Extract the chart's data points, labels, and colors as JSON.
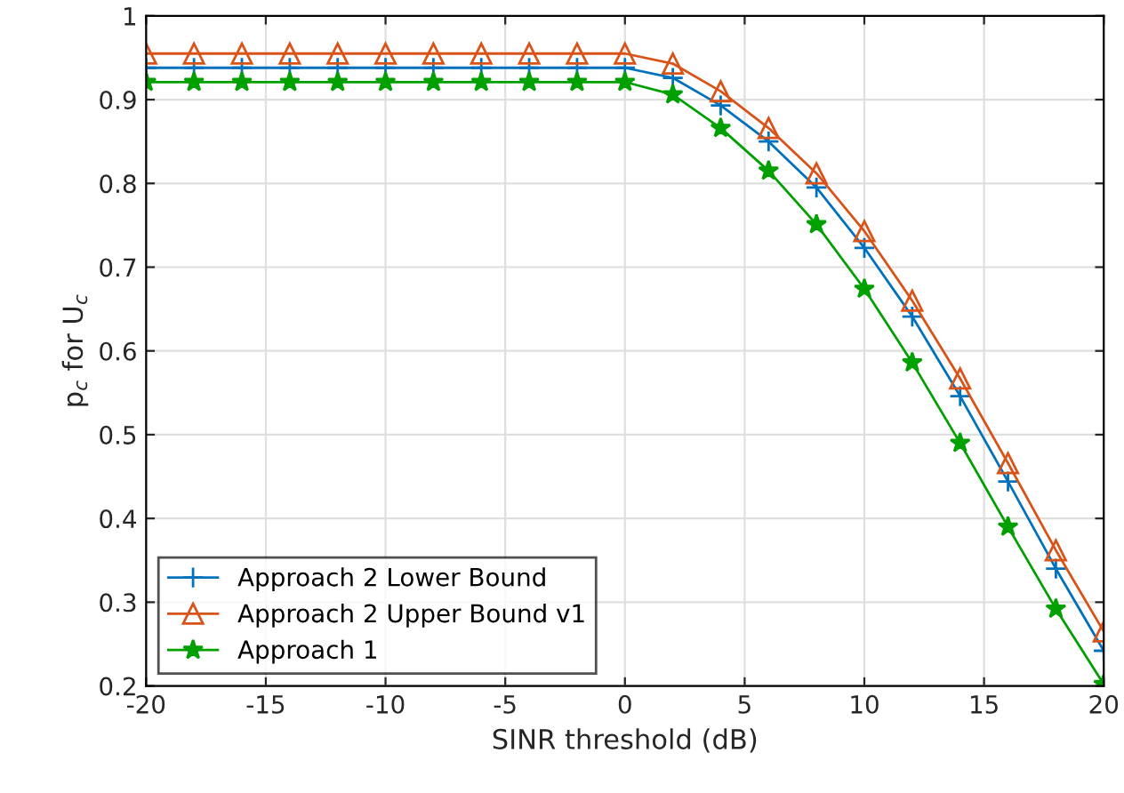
{
  "chart_data": {
    "type": "line",
    "xlabel": "SINR threshold (dB)",
    "ylabel": "p$_{c}$ for U$_{c}$",
    "x": [
      -20,
      -18,
      -16,
      -14,
      -12,
      -10,
      -8,
      -6,
      -4,
      -2,
      0,
      2,
      4,
      6,
      8,
      10,
      12,
      14,
      16,
      18,
      20
    ],
    "series": [
      {
        "name": "Approach 2 Lower Bound",
        "color": "#0072bd",
        "marker": "cross",
        "values": [
          0.938,
          0.938,
          0.938,
          0.938,
          0.938,
          0.938,
          0.938,
          0.938,
          0.938,
          0.938,
          0.938,
          0.926,
          0.893,
          0.85,
          0.795,
          0.723,
          0.641,
          0.546,
          0.444,
          0.34,
          0.242
        ]
      },
      {
        "name": "Approach 2 Upper Bound v1",
        "color": "#d95319",
        "marker": "triangle",
        "values": [
          0.955,
          0.955,
          0.955,
          0.955,
          0.955,
          0.955,
          0.955,
          0.955,
          0.955,
          0.955,
          0.955,
          0.943,
          0.91,
          0.866,
          0.812,
          0.743,
          0.66,
          0.567,
          0.466,
          0.362,
          0.265
        ]
      },
      {
        "name": "Approach 1",
        "color": "#00a000",
        "marker": "star",
        "values": [
          0.921,
          0.921,
          0.921,
          0.921,
          0.921,
          0.921,
          0.921,
          0.921,
          0.921,
          0.921,
          0.921,
          0.906,
          0.866,
          0.815,
          0.751,
          0.674,
          0.586,
          0.49,
          0.39,
          0.292,
          0.202
        ]
      }
    ],
    "xlim": [
      -20,
      20
    ],
    "xticks": [
      -20,
      -15,
      -10,
      -5,
      0,
      5,
      10,
      15,
      20
    ],
    "ylim": [
      0.2,
      1
    ],
    "yticks": [
      0.2,
      0.3,
      0.4,
      0.5,
      0.6,
      0.7,
      0.8,
      0.9,
      1
    ],
    "grid": true,
    "legend": "bottom left",
    "line_style": "solid"
  }
}
